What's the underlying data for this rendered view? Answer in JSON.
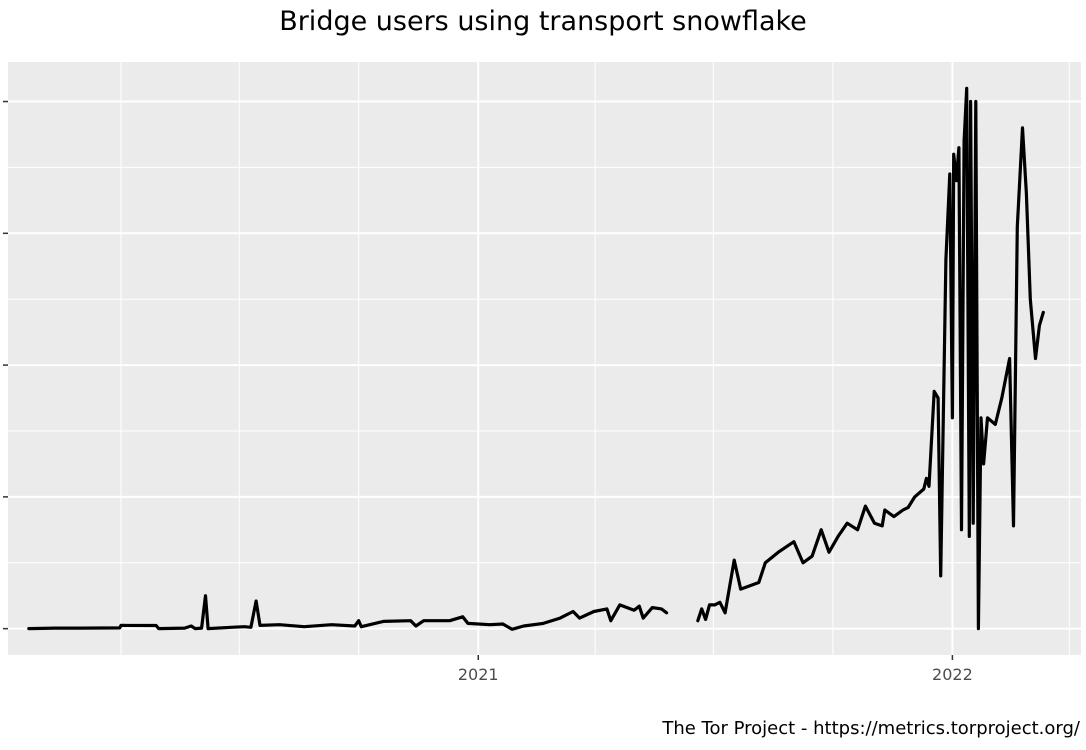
{
  "title": "Bridge users using transport snowflake",
  "caption": "The Tor Project - https://metrics.torproject.org/",
  "chart_data": {
    "type": "line",
    "title": "Bridge users using transport snowflake",
    "xlabel": "",
    "ylabel": "",
    "x_tick_labels": [
      "2021",
      "2022"
    ],
    "y_tick_labels": [],
    "xlim": [
      "2020-01-05",
      "2022-04-10"
    ],
    "ylim": [
      -2000,
      43000
    ],
    "y_major_ticks": [
      0,
      10000,
      20000,
      30000,
      40000
    ],
    "x_major_ticks": [
      "2021-01-01",
      "2022-01-01"
    ],
    "x_minor_ticks": [
      "2020-04-01",
      "2020-07-01",
      "2020-10-01",
      "2021-04-01",
      "2021-07-01",
      "2021-10-01",
      "2022-04-01"
    ],
    "grid": true,
    "legend": "none",
    "colors": {
      "line": "#000000",
      "panel": "#ebebeb",
      "grid": "#ffffff"
    },
    "series": [
      {
        "segments": [
          [
            [
              "2020-01-21",
              0
            ],
            [
              "2020-02-10",
              40
            ],
            [
              "2020-03-01",
              40
            ],
            [
              "2020-03-31",
              60
            ],
            [
              "2020-04-01",
              250
            ],
            [
              "2020-04-28",
              240
            ],
            [
              "2020-04-30",
              0
            ],
            [
              "2020-05-20",
              40
            ],
            [
              "2020-05-25",
              200
            ],
            [
              "2020-05-28",
              0
            ],
            [
              "2020-06-02",
              40
            ],
            [
              "2020-06-05",
              2500
            ],
            [
              "2020-06-07",
              0
            ],
            [
              "2020-06-25",
              100
            ],
            [
              "2020-07-05",
              150
            ],
            [
              "2020-07-10",
              100
            ],
            [
              "2020-07-14",
              2100
            ],
            [
              "2020-07-17",
              250
            ],
            [
              "2020-08-01",
              300
            ],
            [
              "2020-08-20",
              150
            ],
            [
              "2020-09-10",
              300
            ],
            [
              "2020-09-28",
              200
            ],
            [
              "2020-10-01",
              600
            ],
            [
              "2020-10-03",
              150
            ],
            [
              "2020-10-20",
              550
            ],
            [
              "2020-11-10",
              600
            ],
            [
              "2020-11-14",
              200
            ],
            [
              "2020-11-20",
              600
            ],
            [
              "2020-12-10",
              600
            ],
            [
              "2020-12-20",
              900
            ],
            [
              "2020-12-24",
              400
            ],
            [
              "2021-01-10",
              300
            ],
            [
              "2021-01-20",
              350
            ],
            [
              "2021-01-27",
              -50
            ],
            [
              "2021-02-05",
              200
            ],
            [
              "2021-02-20",
              400
            ],
            [
              "2021-03-05",
              800
            ],
            [
              "2021-03-15",
              1300
            ],
            [
              "2021-03-20",
              800
            ],
            [
              "2021-03-31",
              1300
            ],
            [
              "2021-04-10",
              1500
            ],
            [
              "2021-04-13",
              600
            ],
            [
              "2021-04-20",
              1800
            ],
            [
              "2021-05-01",
              1400
            ],
            [
              "2021-05-05",
              1700
            ],
            [
              "2021-05-08",
              800
            ],
            [
              "2021-05-15",
              1600
            ],
            [
              "2021-05-22",
              1500
            ],
            [
              "2021-05-26",
              1200
            ]
          ],
          [
            [
              "2021-06-19",
              600
            ],
            [
              "2021-06-22",
              1500
            ],
            [
              "2021-06-25",
              700
            ],
            [
              "2021-06-28",
              1800
            ],
            [
              "2021-07-02",
              1800
            ],
            [
              "2021-07-06",
              2000
            ],
            [
              "2021-07-10",
              1200
            ],
            [
              "2021-07-17",
              5200
            ],
            [
              "2021-07-22",
              3000
            ],
            [
              "2021-08-05",
              3500
            ],
            [
              "2021-08-10",
              5000
            ],
            [
              "2021-08-20",
              5800
            ],
            [
              "2021-09-01",
              6600
            ],
            [
              "2021-09-08",
              5000
            ],
            [
              "2021-09-15",
              5500
            ],
            [
              "2021-09-22",
              7500
            ],
            [
              "2021-09-28",
              5800
            ],
            [
              "2021-10-05",
              7000
            ],
            [
              "2021-10-12",
              8000
            ],
            [
              "2021-10-20",
              7500
            ],
            [
              "2021-10-26",
              9300
            ],
            [
              "2021-11-02",
              8000
            ],
            [
              "2021-11-08",
              7800
            ],
            [
              "2021-11-10",
              9000
            ],
            [
              "2021-11-17",
              8500
            ],
            [
              "2021-11-24",
              9000
            ],
            [
              "2021-11-28",
              9200
            ],
            [
              "2021-12-03",
              10000
            ],
            [
              "2021-12-10",
              10600
            ],
            [
              "2021-12-12",
              11400
            ],
            [
              "2021-12-14",
              10800
            ],
            [
              "2021-12-18",
              18000
            ],
            [
              "2021-12-21",
              17500
            ],
            [
              "2021-12-23",
              4000
            ],
            [
              "2021-12-27",
              28000
            ],
            [
              "2021-12-30",
              34500
            ],
            [
              "2022-01-01",
              16000
            ],
            [
              "2022-01-02",
              36000
            ],
            [
              "2022-01-04",
              34000
            ],
            [
              "2022-01-06",
              36500
            ],
            [
              "2022-01-08",
              7500
            ],
            [
              "2022-01-10",
              37000
            ],
            [
              "2022-01-12",
              41000
            ],
            [
              "2022-01-14",
              7000
            ],
            [
              "2022-01-15",
              40000
            ],
            [
              "2022-01-17",
              8000
            ],
            [
              "2022-01-19",
              40000
            ],
            [
              "2022-01-21",
              0
            ],
            [
              "2022-01-23",
              16000
            ],
            [
              "2022-01-25",
              12500
            ],
            [
              "2022-01-28",
              16000
            ],
            [
              "2022-02-03",
              15500
            ],
            [
              "2022-02-08",
              17500
            ],
            [
              "2022-02-14",
              20500
            ],
            [
              "2022-02-17",
              7800
            ],
            [
              "2022-02-20",
              30500
            ],
            [
              "2022-02-24",
              38000
            ],
            [
              "2022-02-27",
              33000
            ],
            [
              "2022-03-02",
              25000
            ],
            [
              "2022-03-06",
              20500
            ],
            [
              "2022-03-09",
              23000
            ],
            [
              "2022-03-12",
              24000
            ]
          ]
        ]
      }
    ]
  }
}
